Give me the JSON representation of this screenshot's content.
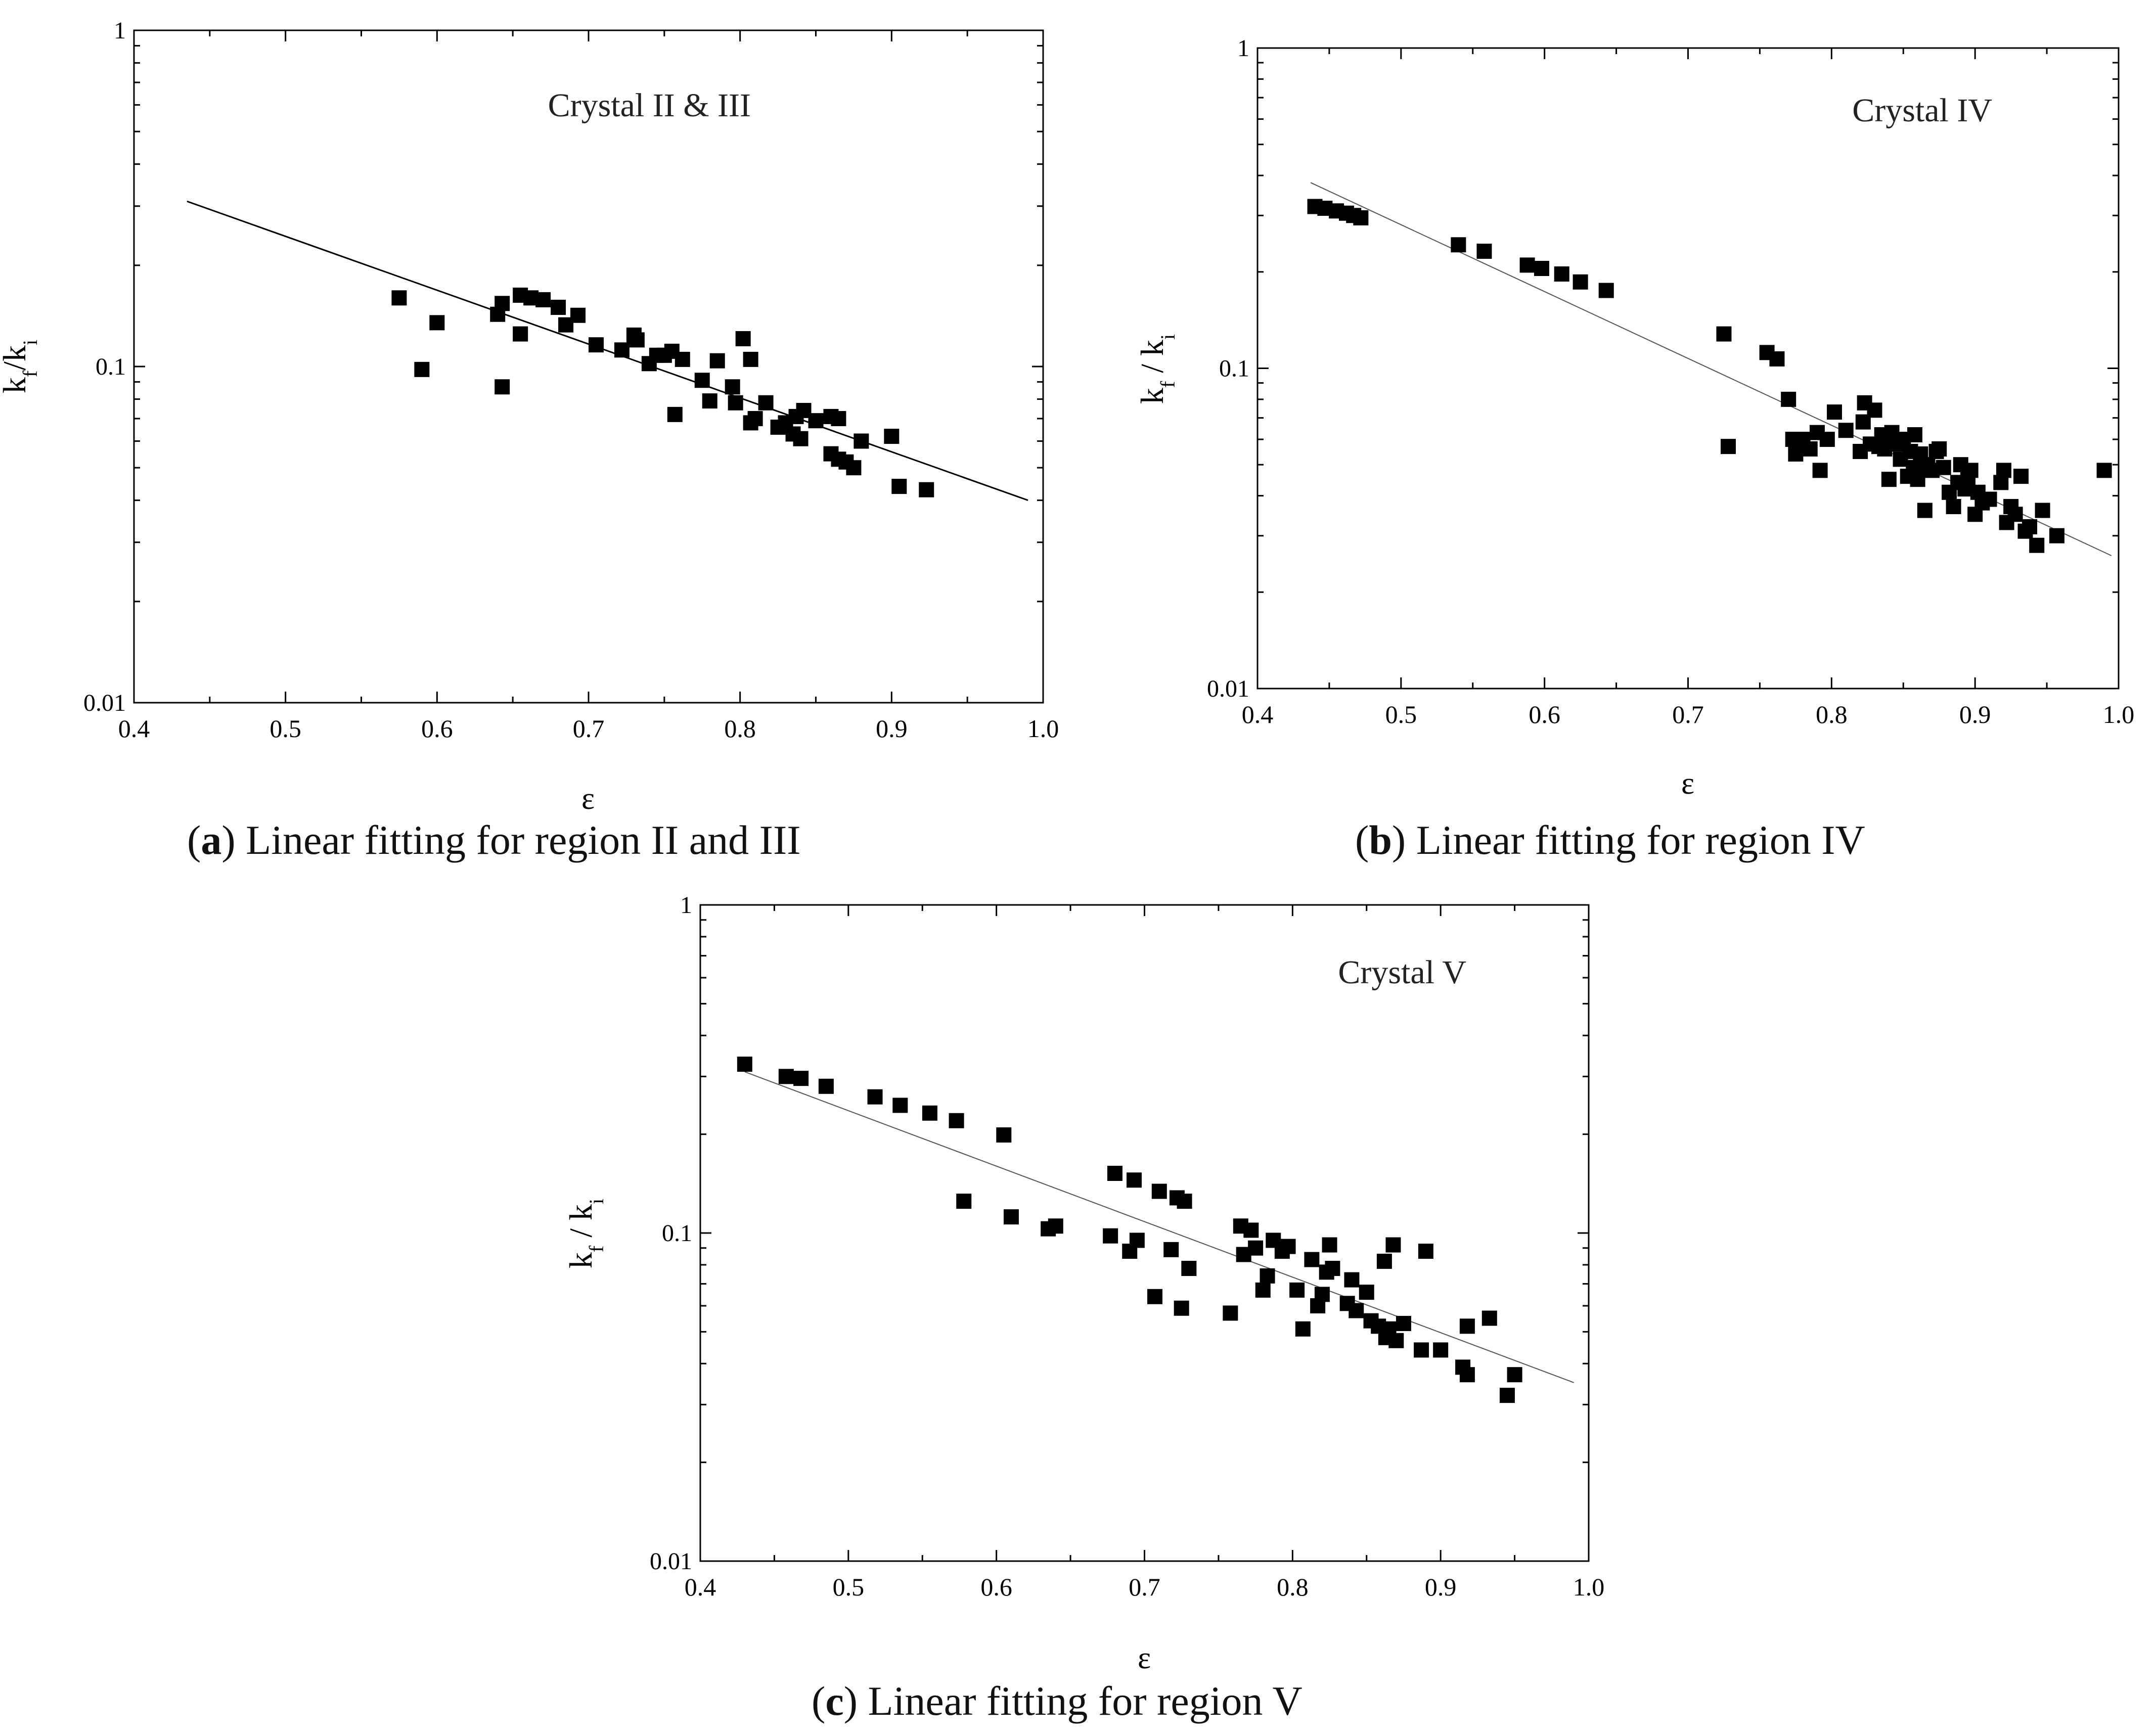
{
  "figure": {
    "captions": [
      {
        "letter": "a",
        "text": "Linear fitting for region II and III"
      },
      {
        "letter": "b",
        "text": "Linear fitting for region IV"
      },
      {
        "letter": "c",
        "text": "Linear fitting for region V"
      }
    ]
  },
  "chart_data": [
    {
      "id": "a",
      "type": "scatter",
      "title": "Crystal II & III",
      "xlabel": "ε",
      "ylabel_parts": [
        "k",
        "f",
        "/k",
        "i"
      ],
      "xlim": [
        0.4,
        1.0
      ],
      "ylim": [
        0.01,
        1
      ],
      "yscale": "log",
      "xticks": [
        "0.4",
        "0.5",
        "0.6",
        "0.7",
        "0.8",
        "0.9",
        "1.0"
      ],
      "yticks": [
        "0.01",
        "0.1",
        "1"
      ],
      "fit_line": {
        "x": [
          0.435,
          0.99
        ],
        "y": [
          0.31,
          0.04
        ]
      },
      "series": [
        {
          "name": "Crystal II & III",
          "points": [
            [
              0.575,
              0.16
            ],
            [
              0.59,
              0.098
            ],
            [
              0.6,
              0.135
            ],
            [
              0.64,
              0.143
            ],
            [
              0.643,
              0.154
            ],
            [
              0.643,
              0.087
            ],
            [
              0.655,
              0.163
            ],
            [
              0.655,
              0.125
            ],
            [
              0.662,
              0.16
            ],
            [
              0.67,
              0.158
            ],
            [
              0.68,
              0.15
            ],
            [
              0.685,
              0.133
            ],
            [
              0.693,
              0.142
            ],
            [
              0.705,
              0.116
            ],
            [
              0.722,
              0.112
            ],
            [
              0.73,
              0.124
            ],
            [
              0.732,
              0.12
            ],
            [
              0.74,
              0.102
            ],
            [
              0.745,
              0.108
            ],
            [
              0.75,
              0.108
            ],
            [
              0.755,
              0.111
            ],
            [
              0.757,
              0.072
            ],
            [
              0.762,
              0.105
            ],
            [
              0.775,
              0.091
            ],
            [
              0.78,
              0.079
            ],
            [
              0.785,
              0.104
            ],
            [
              0.795,
              0.087
            ],
            [
              0.797,
              0.078
            ],
            [
              0.802,
              0.121
            ],
            [
              0.807,
              0.105
            ],
            [
              0.807,
              0.068
            ],
            [
              0.81,
              0.07
            ],
            [
              0.817,
              0.078
            ],
            [
              0.825,
              0.066
            ],
            [
              0.83,
              0.068
            ],
            [
              0.835,
              0.063
            ],
            [
              0.837,
              0.071
            ],
            [
              0.84,
              0.061
            ],
            [
              0.842,
              0.074
            ],
            [
              0.85,
              0.069
            ],
            [
              0.86,
              0.071
            ],
            [
              0.86,
              0.055
            ],
            [
              0.865,
              0.053
            ],
            [
              0.865,
              0.07
            ],
            [
              0.87,
              0.052
            ],
            [
              0.875,
              0.05
            ],
            [
              0.88,
              0.06
            ],
            [
              0.9,
              0.062
            ],
            [
              0.905,
              0.044
            ],
            [
              0.923,
              0.043
            ]
          ]
        }
      ]
    },
    {
      "id": "b",
      "type": "scatter",
      "title": "Crystal IV",
      "xlabel": "ε",
      "ylabel_parts": [
        "k",
        "f",
        " / k",
        "i"
      ],
      "xlim": [
        0.4,
        1.0
      ],
      "ylim": [
        0.01,
        1
      ],
      "yscale": "log",
      "xticks": [
        "0.4",
        "0.5",
        "0.6",
        "0.7",
        "0.8",
        "0.9",
        "1.0"
      ],
      "yticks": [
        "0.01",
        "0.1",
        "1"
      ],
      "fit_line": {
        "x": [
          0.437,
          0.995
        ],
        "y": [
          0.38,
          0.026
        ]
      },
      "series": [
        {
          "name": "Crystal IV",
          "points": [
            [
              0.44,
              0.32
            ],
            [
              0.447,
              0.316
            ],
            [
              0.455,
              0.31
            ],
            [
              0.462,
              0.305
            ],
            [
              0.467,
              0.3
            ],
            [
              0.472,
              0.295
            ],
            [
              0.54,
              0.243
            ],
            [
              0.558,
              0.232
            ],
            [
              0.588,
              0.21
            ],
            [
              0.598,
              0.205
            ],
            [
              0.612,
              0.197
            ],
            [
              0.625,
              0.186
            ],
            [
              0.643,
              0.175
            ],
            [
              0.725,
              0.128
            ],
            [
              0.728,
              0.057
            ],
            [
              0.755,
              0.112
            ],
            [
              0.762,
              0.107
            ],
            [
              0.77,
              0.08
            ],
            [
              0.773,
              0.06
            ],
            [
              0.775,
              0.054
            ],
            [
              0.78,
              0.06
            ],
            [
              0.785,
              0.056
            ],
            [
              0.79,
              0.063
            ],
            [
              0.792,
              0.048
            ],
            [
              0.797,
              0.06
            ],
            [
              0.802,
              0.073
            ],
            [
              0.81,
              0.064
            ],
            [
              0.82,
              0.055
            ],
            [
              0.822,
              0.068
            ],
            [
              0.823,
              0.078
            ],
            [
              0.827,
              0.058
            ],
            [
              0.83,
              0.074
            ],
            [
              0.833,
              0.057
            ],
            [
              0.835,
              0.062
            ],
            [
              0.837,
              0.056
            ],
            [
              0.84,
              0.045
            ],
            [
              0.842,
              0.063
            ],
            [
              0.845,
              0.058
            ],
            [
              0.848,
              0.052
            ],
            [
              0.85,
              0.06
            ],
            [
              0.853,
              0.046
            ],
            [
              0.855,
              0.055
            ],
            [
              0.857,
              0.049
            ],
            [
              0.858,
              0.062
            ],
            [
              0.86,
              0.045
            ],
            [
              0.862,
              0.054
            ],
            [
              0.865,
              0.036
            ],
            [
              0.867,
              0.05
            ],
            [
              0.87,
              0.048
            ],
            [
              0.873,
              0.055
            ],
            [
              0.875,
              0.056
            ],
            [
              0.878,
              0.049
            ],
            [
              0.882,
              0.041
            ],
            [
              0.885,
              0.037
            ],
            [
              0.888,
              0.044
            ],
            [
              0.89,
              0.05
            ],
            [
              0.893,
              0.042
            ],
            [
              0.895,
              0.045
            ],
            [
              0.897,
              0.048
            ],
            [
              0.9,
              0.035
            ],
            [
              0.902,
              0.041
            ],
            [
              0.905,
              0.038
            ],
            [
              0.91,
              0.039
            ],
            [
              0.918,
              0.044
            ],
            [
              0.92,
              0.048
            ],
            [
              0.922,
              0.033
            ],
            [
              0.925,
              0.037
            ],
            [
              0.928,
              0.035
            ],
            [
              0.932,
              0.046
            ],
            [
              0.935,
              0.031
            ],
            [
              0.938,
              0.032
            ],
            [
              0.943,
              0.028
            ],
            [
              0.947,
              0.036
            ],
            [
              0.957,
              0.03
            ],
            [
              0.99,
              0.048
            ]
          ]
        }
      ]
    },
    {
      "id": "c",
      "type": "scatter",
      "title": "Crystal V",
      "xlabel": "ε",
      "ylabel_parts": [
        "k",
        "f",
        " / k",
        "i"
      ],
      "xlim": [
        0.4,
        1.0
      ],
      "ylim": [
        0.01,
        1
      ],
      "yscale": "log",
      "xticks": [
        "0.4",
        "0.5",
        "0.6",
        "0.7",
        "0.8",
        "0.9",
        "1.0"
      ],
      "yticks": [
        "0.01",
        "0.1",
        "1"
      ],
      "fit_line": {
        "x": [
          0.43,
          0.99
        ],
        "y": [
          0.31,
          0.035
        ]
      },
      "series": [
        {
          "name": "Crystal V",
          "points": [
            [
              0.43,
              0.327
            ],
            [
              0.458,
              0.3
            ],
            [
              0.468,
              0.296
            ],
            [
              0.485,
              0.28
            ],
            [
              0.518,
              0.26
            ],
            [
              0.535,
              0.245
            ],
            [
              0.555,
              0.232
            ],
            [
              0.573,
              0.22
            ],
            [
              0.578,
              0.125
            ],
            [
              0.605,
              0.199
            ],
            [
              0.61,
              0.112
            ],
            [
              0.635,
              0.103
            ],
            [
              0.64,
              0.105
            ],
            [
              0.677,
              0.098
            ],
            [
              0.68,
              0.152
            ],
            [
              0.69,
              0.088
            ],
            [
              0.693,
              0.145
            ],
            [
              0.695,
              0.095
            ],
            [
              0.707,
              0.064
            ],
            [
              0.71,
              0.134
            ],
            [
              0.718,
              0.089
            ],
            [
              0.722,
              0.128
            ],
            [
              0.725,
              0.059
            ],
            [
              0.727,
              0.125
            ],
            [
              0.73,
              0.078
            ],
            [
              0.758,
              0.057
            ],
            [
              0.765,
              0.105
            ],
            [
              0.767,
              0.086
            ],
            [
              0.772,
              0.102
            ],
            [
              0.775,
              0.09
            ],
            [
              0.78,
              0.067
            ],
            [
              0.783,
              0.074
            ],
            [
              0.787,
              0.095
            ],
            [
              0.793,
              0.088
            ],
            [
              0.797,
              0.091
            ],
            [
              0.803,
              0.067
            ],
            [
              0.807,
              0.051
            ],
            [
              0.813,
              0.083
            ],
            [
              0.817,
              0.06
            ],
            [
              0.82,
              0.065
            ],
            [
              0.823,
              0.076
            ],
            [
              0.825,
              0.092
            ],
            [
              0.827,
              0.078
            ],
            [
              0.837,
              0.061
            ],
            [
              0.84,
              0.072
            ],
            [
              0.843,
              0.058
            ],
            [
              0.85,
              0.066
            ],
            [
              0.853,
              0.054
            ],
            [
              0.858,
              0.052
            ],
            [
              0.862,
              0.082
            ],
            [
              0.863,
              0.048
            ],
            [
              0.865,
              0.051
            ],
            [
              0.868,
              0.092
            ],
            [
              0.87,
              0.047
            ],
            [
              0.875,
              0.053
            ],
            [
              0.887,
              0.044
            ],
            [
              0.89,
              0.088
            ],
            [
              0.9,
              0.044
            ],
            [
              0.915,
              0.039
            ],
            [
              0.918,
              0.037
            ],
            [
              0.918,
              0.052
            ],
            [
              0.933,
              0.055
            ],
            [
              0.945,
              0.032
            ],
            [
              0.95,
              0.037
            ]
          ]
        }
      ]
    }
  ]
}
